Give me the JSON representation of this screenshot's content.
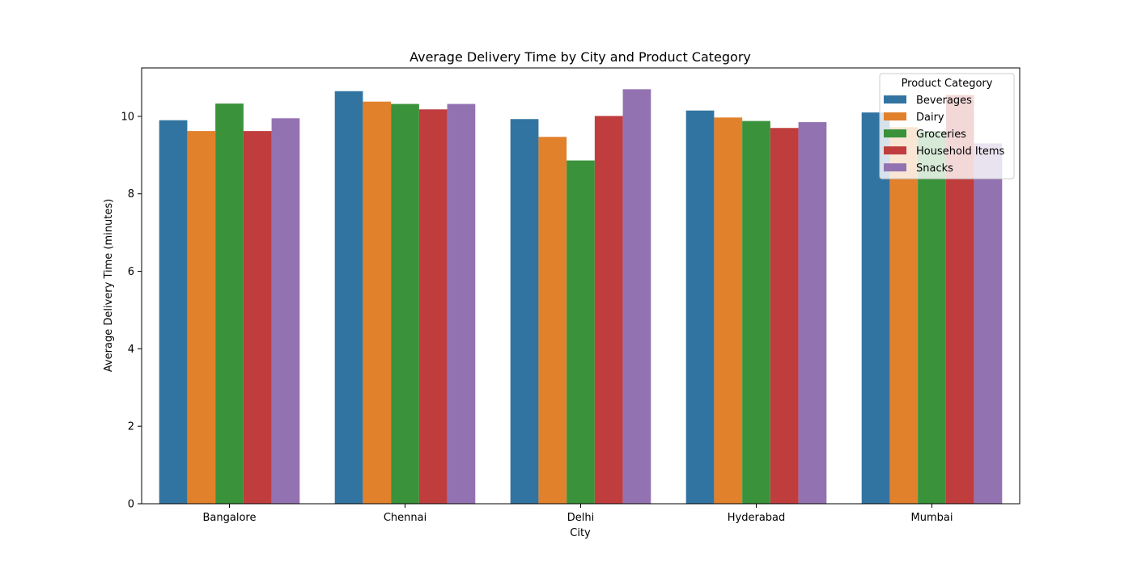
{
  "chart_data": {
    "type": "bar",
    "title": "Average Delivery Time by City and Product Category",
    "xlabel": "City",
    "ylabel": "Average Delivery Time (minutes)",
    "ylim": [
      0,
      11.25
    ],
    "yticks": [
      0,
      2,
      4,
      6,
      8,
      10
    ],
    "categories": [
      "Bangalore",
      "Chennai",
      "Delhi",
      "Hyderabad",
      "Mumbai"
    ],
    "legend": {
      "title": "Product Category",
      "placement": "top-right"
    },
    "grid": false,
    "series": [
      {
        "name": "Beverages",
        "color": "#3274a1",
        "values": [
          9.9,
          10.65,
          9.93,
          10.15,
          10.1
        ]
      },
      {
        "name": "Dairy",
        "color": "#e1812c",
        "values": [
          9.62,
          10.38,
          9.47,
          9.97,
          9.72
        ]
      },
      {
        "name": "Groceries",
        "color": "#3a923a",
        "values": [
          10.33,
          10.32,
          8.86,
          9.88,
          9.62
        ]
      },
      {
        "name": "Household Items",
        "color": "#c03d3e",
        "values": [
          9.62,
          10.18,
          10.01,
          9.7,
          10.55
        ]
      },
      {
        "name": "Snacks",
        "color": "#9372b2",
        "values": [
          9.95,
          10.32,
          10.7,
          9.85,
          9.3
        ]
      }
    ]
  }
}
